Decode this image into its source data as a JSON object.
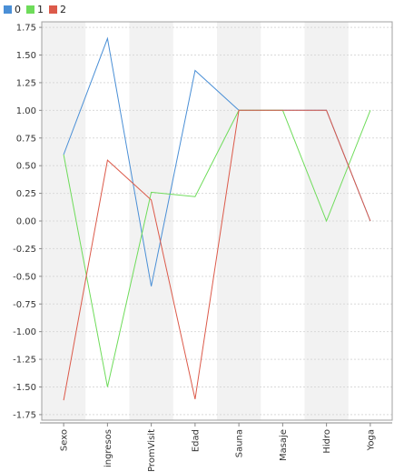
{
  "chart_data": {
    "type": "line",
    "categories": [
      "Sexo",
      "ingresos",
      "PromVisit",
      "Edad",
      "Sauna",
      "Masaje",
      "Hidro",
      "Yoga"
    ],
    "series": [
      {
        "name": "0",
        "color": "#4a8fd6",
        "values": [
          0.6,
          1.65,
          -0.59,
          1.36,
          1.0,
          1.0,
          1.0,
          0.0
        ]
      },
      {
        "name": "1",
        "color": "#6edc5a",
        "values": [
          0.6,
          -1.5,
          0.26,
          0.22,
          1.0,
          1.0,
          0.0,
          1.0
        ]
      },
      {
        "name": "2",
        "color": "#dc5a4a",
        "values": [
          -1.62,
          0.55,
          0.19,
          -1.61,
          1.0,
          1.0,
          1.0,
          0.0
        ]
      }
    ],
    "title": "",
    "xlabel": "",
    "ylabel": "",
    "ylim": [
      -1.8,
      1.8
    ],
    "yticks": [
      "1.75",
      "1.50",
      "1.25",
      "1.00",
      "0.75",
      "0.50",
      "0.25",
      "0.00",
      "-0.25",
      "-0.50",
      "-0.75",
      "-1.00",
      "-1.25",
      "-1.50",
      "-1.75"
    ],
    "grid": true,
    "legend": "top-left"
  }
}
